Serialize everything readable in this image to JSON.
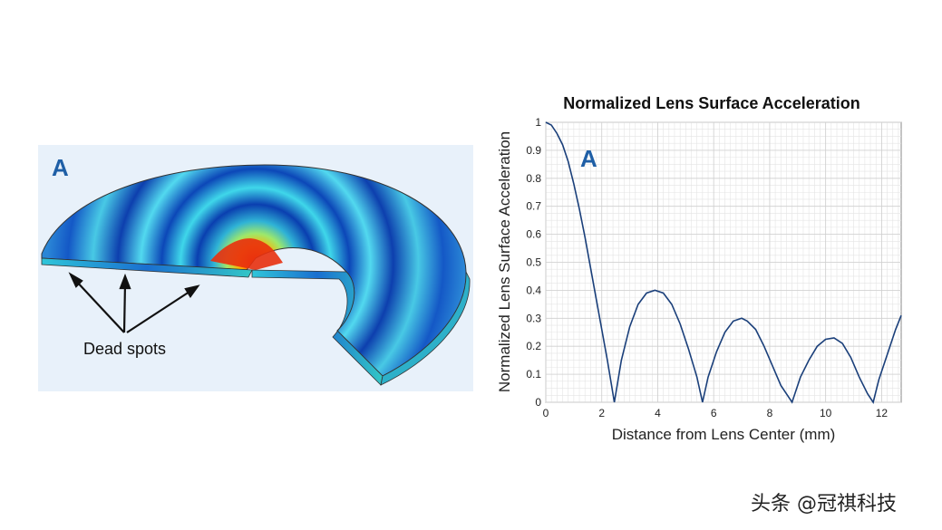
{
  "left_panel": {
    "label": "A",
    "annotation": "Dead spots"
  },
  "watermark": "头条 @冠祺科技",
  "chart_data": {
    "type": "line",
    "title": "Normalized Lens Surface Acceleration",
    "panel_label": "A",
    "xlabel": "Distance from Lens Center (mm)",
    "ylabel": "Normalized Lens Surface Acceleration",
    "xlim": [
      0,
      12.7
    ],
    "ylim": [
      0,
      1
    ],
    "xticks": [
      0,
      2,
      4,
      6,
      8,
      10,
      12
    ],
    "yticks": [
      0,
      0.1,
      0.2,
      0.3,
      0.4,
      0.5,
      0.6,
      0.7,
      0.8,
      0.9,
      1
    ],
    "grid": true,
    "series": [
      {
        "color": "#1a3f7a",
        "x": [
          0,
          0.2,
          0.4,
          0.6,
          0.8,
          1.0,
          1.2,
          1.4,
          1.6,
          1.8,
          2.0,
          2.2,
          2.45,
          2.7,
          3.0,
          3.3,
          3.6,
          3.9,
          4.2,
          4.5,
          4.8,
          5.1,
          5.4,
          5.6,
          5.8,
          6.1,
          6.4,
          6.7,
          7.0,
          7.2,
          7.5,
          7.8,
          8.1,
          8.4,
          8.8,
          9.1,
          9.4,
          9.7,
          10.0,
          10.3,
          10.6,
          10.9,
          11.2,
          11.5,
          11.7,
          11.9,
          12.2,
          12.5,
          12.7
        ],
        "y": [
          1.0,
          0.99,
          0.96,
          0.92,
          0.86,
          0.78,
          0.69,
          0.59,
          0.48,
          0.37,
          0.26,
          0.15,
          0.0,
          0.15,
          0.27,
          0.35,
          0.39,
          0.4,
          0.39,
          0.35,
          0.28,
          0.19,
          0.09,
          0.0,
          0.09,
          0.18,
          0.25,
          0.29,
          0.3,
          0.29,
          0.26,
          0.2,
          0.13,
          0.06,
          0.0,
          0.09,
          0.15,
          0.2,
          0.225,
          0.23,
          0.21,
          0.16,
          0.09,
          0.03,
          0.0,
          0.08,
          0.17,
          0.26,
          0.31
        ]
      }
    ]
  }
}
